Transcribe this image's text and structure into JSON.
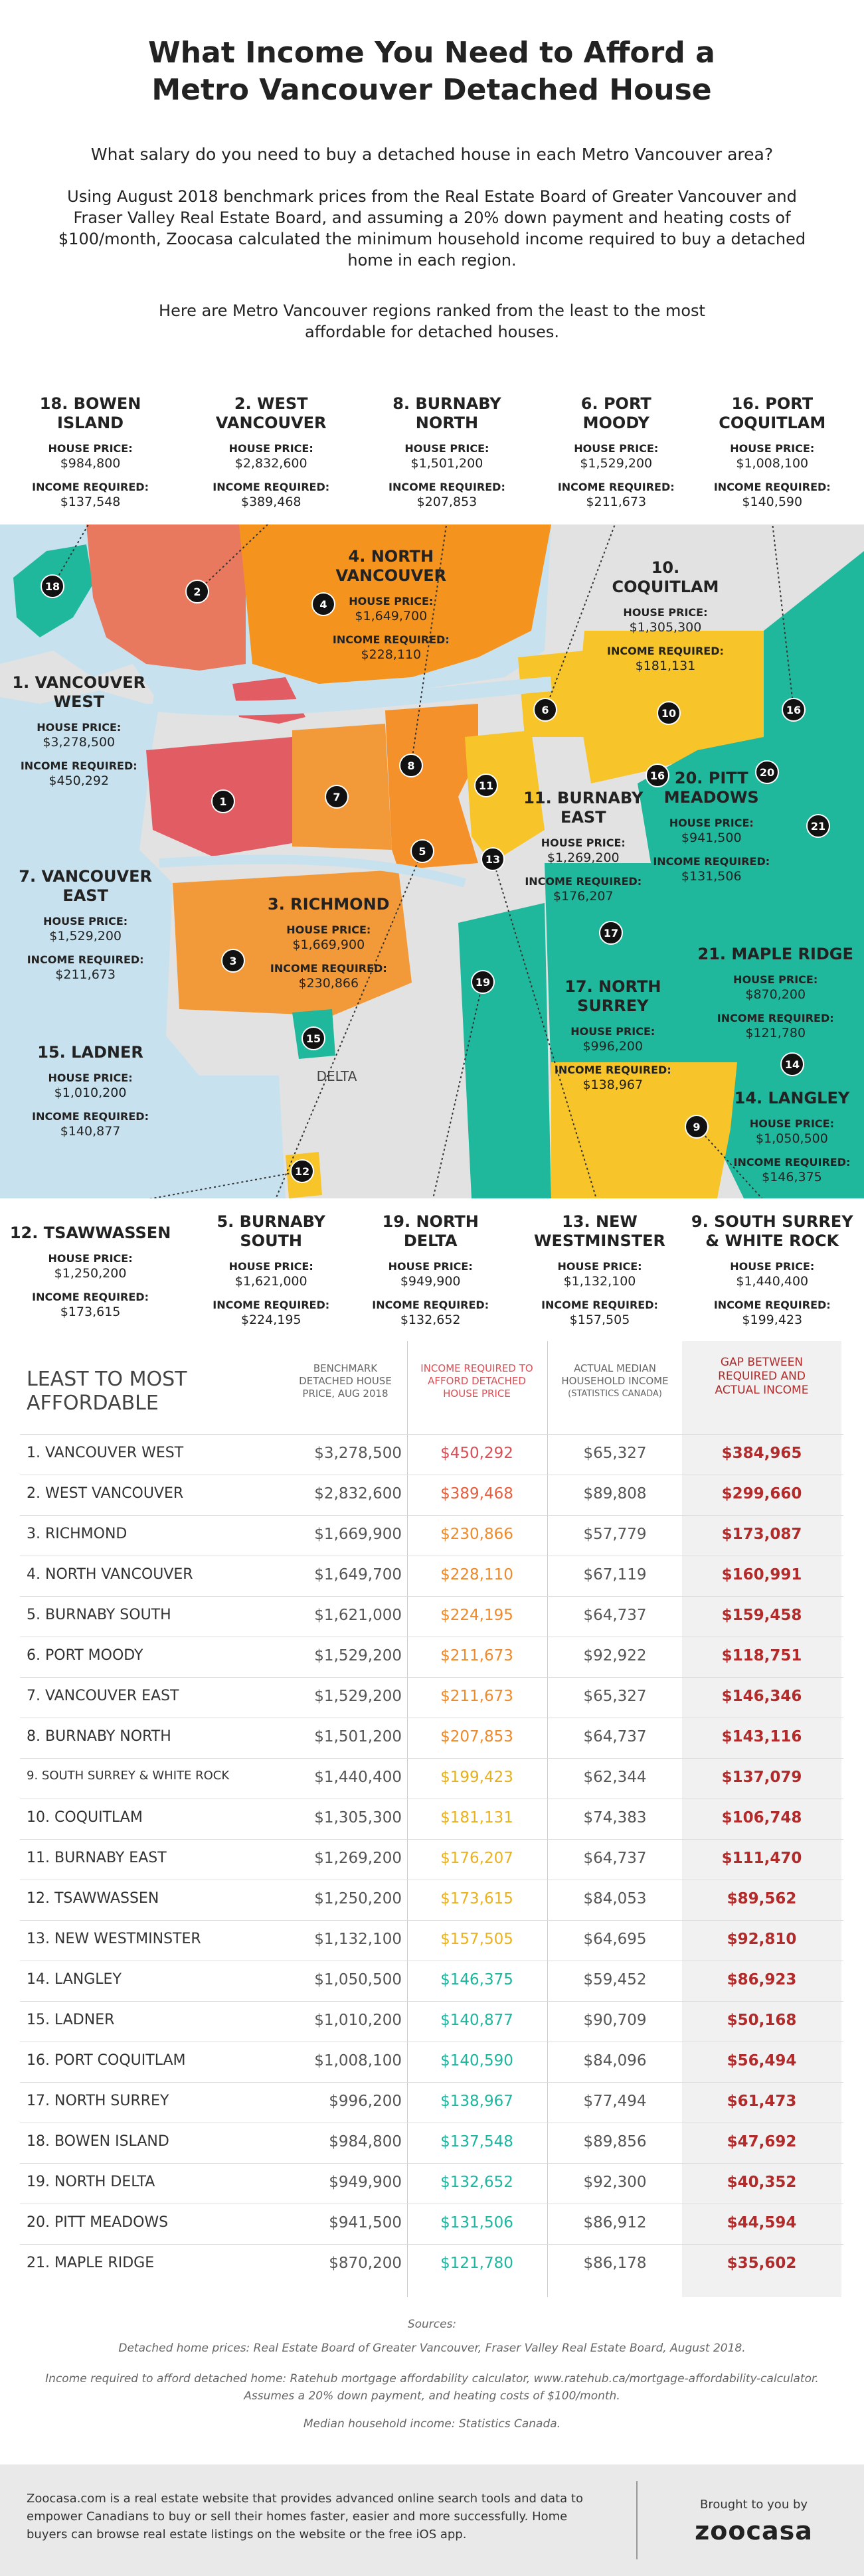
{
  "header": {
    "title": "What Income You Need to Afford a Metro Vancouver Detached House",
    "question": "What salary do you need to buy a detached house in each Metro Vancouver area?",
    "paragraph": "Using August 2018 benchmark prices from the Real Estate Board of Greater Vancouver and Fraser Valley Real Estate Board, and assuming a 20% down payment and heating costs of $100/month, Zoocasa calculated the minimum household income required to buy a detached home in each region.",
    "ranking_note": "Here are Metro Vancouver regions ranked from the least to the most affordable for detached houses."
  },
  "map": {
    "house_price_label": "HOUSE PRICE:",
    "income_label": "INCOME REQUIRED:",
    "delta_label": "DELTA",
    "regions": [
      {
        "marker": "1",
        "title_lines": [
          "1. VANCOUVER",
          "WEST"
        ],
        "house_price": "$3,278,500",
        "income_required": "$450,292"
      },
      {
        "marker": "2",
        "title_lines": [
          "2. WEST",
          "VANCOUVER"
        ],
        "house_price": "$2,832,600",
        "income_required": "$389,468"
      },
      {
        "marker": "3",
        "title_lines": [
          "3. RICHMOND"
        ],
        "house_price": "$1,669,900",
        "income_required": "$230,866"
      },
      {
        "marker": "4",
        "title_lines": [
          "4. NORTH",
          "VANCOUVER"
        ],
        "house_price": "$1,649,700",
        "income_required": "$228,110"
      },
      {
        "marker": "5",
        "title_lines": [
          "5. BURNABY",
          "SOUTH"
        ],
        "house_price": "$1,621,000",
        "income_required": "$224,195"
      },
      {
        "marker": "6",
        "title_lines": [
          "6. PORT",
          "MOODY"
        ],
        "house_price": "$1,529,200",
        "income_required": "$211,673"
      },
      {
        "marker": "7",
        "title_lines": [
          "7. VANCOUVER",
          "EAST"
        ],
        "house_price": "$1,529,200",
        "income_required": "$211,673"
      },
      {
        "marker": "8",
        "title_lines": [
          "8. BURNABY",
          "NORTH"
        ],
        "house_price": "$1,501,200",
        "income_required": "$207,853"
      },
      {
        "marker": "9",
        "title_lines": [
          "9. SOUTH SURREY",
          "& WHITE ROCK"
        ],
        "house_price": "$1,440,400",
        "income_required": "$199,423"
      },
      {
        "marker": "10",
        "title_lines": [
          "10.",
          "COQUITLAM"
        ],
        "house_price": "$1,305,300",
        "income_required": "$181,131"
      },
      {
        "marker": "11",
        "title_lines": [
          "11. BURNABY",
          "EAST"
        ],
        "house_price": "$1,269,200",
        "income_required": "$176,207"
      },
      {
        "marker": "12",
        "title_lines": [
          "12. TSAWWASSEN"
        ],
        "house_price": "$1,250,200",
        "income_required": "$173,615"
      },
      {
        "marker": "13",
        "title_lines": [
          "13. NEW",
          "WESTMINSTER"
        ],
        "house_price": "$1,132,100",
        "income_required": "$157,505"
      },
      {
        "marker": "14",
        "title_lines": [
          "14. LANGLEY"
        ],
        "house_price": "$1,050,500",
        "income_required": "$146,375"
      },
      {
        "marker": "15",
        "title_lines": [
          "15. LADNER"
        ],
        "house_price": "$1,010,200",
        "income_required": "$140,877"
      },
      {
        "marker": "16",
        "title_lines": [
          "16. PORT",
          "COQUITLAM"
        ],
        "house_price": "$1,008,100",
        "income_required": "$140,590"
      },
      {
        "marker": "17",
        "title_lines": [
          "17. NORTH",
          "SURREY"
        ],
        "house_price": "$996,200",
        "income_required": "$138,967"
      },
      {
        "marker": "18",
        "title_lines": [
          "18. BOWEN",
          "ISLAND"
        ],
        "house_price": "$984,800",
        "income_required": "$137,548"
      },
      {
        "marker": "19",
        "title_lines": [
          "19. NORTH",
          "DELTA"
        ],
        "house_price": "$949,900",
        "income_required": "$132,652"
      },
      {
        "marker": "20",
        "title_lines": [
          "20. PITT",
          "MEADOWS"
        ],
        "house_price": "$941,500",
        "income_required": "$131,506"
      },
      {
        "marker": "21",
        "title_lines": [
          "21. MAPLE RIDGE"
        ],
        "house_price": "$870,200",
        "income_required": "$121,780"
      }
    ]
  },
  "table": {
    "title": "LEAST TO MOST AFFORDABLE",
    "columns": [
      "BENCHMARK DETACHED HOUSE PRICE, AUG 2018",
      "INCOME REQUIRED TO AFFORD DETACHED HOUSE PRICE",
      "ACTUAL MEDIAN HOUSEHOLD INCOME",
      "(STATISTICS CANADA)",
      "GAP BETWEEN REQUIRED AND ACTUAL INCOME"
    ],
    "income_colors": [
      "#d94f55",
      "#e8603e",
      "#ef8a2b",
      "#ef8a2b",
      "#ef8a2b",
      "#ef8a2b",
      "#ef8a2b",
      "#ef8a2b",
      "#e6b01c",
      "#ecb21d",
      "#ecb21d",
      "#ecb21d",
      "#ecb21d",
      "#1db7a0",
      "#1db7a0",
      "#1db7a0",
      "#1db7a0",
      "#1db7a0",
      "#1db7a0",
      "#1db7a0",
      "#1db7a0"
    ],
    "rows": [
      [
        "1. VANCOUVER WEST",
        "$3,278,500",
        "$450,292",
        "$65,327",
        "$384,965"
      ],
      [
        "2. WEST VANCOUVER",
        "$2,832,600",
        "$389,468",
        "$89,808",
        "$299,660"
      ],
      [
        "3. RICHMOND",
        "$1,669,900",
        "$230,866",
        "$57,779",
        "$173,087"
      ],
      [
        "4. NORTH VANCOUVER",
        "$1,649,700",
        "$228,110",
        "$67,119",
        "$160,991"
      ],
      [
        "5. BURNABY SOUTH",
        "$1,621,000",
        "$224,195",
        "$64,737",
        "$159,458"
      ],
      [
        "6. PORT MOODY",
        "$1,529,200",
        "$211,673",
        "$92,922",
        "$118,751"
      ],
      [
        "7. VANCOUVER EAST",
        "$1,529,200",
        "$211,673",
        "$65,327",
        "$146,346"
      ],
      [
        "8. BURNABY NORTH",
        "$1,501,200",
        "$207,853",
        "$64,737",
        "$143,116"
      ],
      [
        "9. SOUTH SURREY & WHITE ROCK",
        "$1,440,400",
        "$199,423",
        "$62,344",
        "$137,079"
      ],
      [
        "10. COQUITLAM",
        "$1,305,300",
        "$181,131",
        "$74,383",
        "$106,748"
      ],
      [
        "11. BURNABY EAST",
        "$1,269,200",
        "$176,207",
        "$64,737",
        "$111,470"
      ],
      [
        "12. TSAWWASSEN",
        "$1,250,200",
        "$173,615",
        "$84,053",
        "$89,562"
      ],
      [
        "13. NEW WESTMINSTER",
        "$1,132,100",
        "$157,505",
        "$64,695",
        "$92,810"
      ],
      [
        "14. LANGLEY",
        "$1,050,500",
        "$146,375",
        "$59,452",
        "$86,923"
      ],
      [
        "15. LADNER",
        "$1,010,200",
        "$140,877",
        "$90,709",
        "$50,168"
      ],
      [
        "16. PORT COQUITLAM",
        "$1,008,100",
        "$140,590",
        "$84,096",
        "$56,494"
      ],
      [
        "17. NORTH SURREY",
        "$996,200",
        "$138,967",
        "$77,494",
        "$61,473"
      ],
      [
        "18. BOWEN ISLAND",
        "$984,800",
        "$137,548",
        "$89,856",
        "$47,692"
      ],
      [
        "19. NORTH DELTA",
        "$949,900",
        "$132,652",
        "$92,300",
        "$40,352"
      ],
      [
        "20. PITT MEADOWS",
        "$941,500",
        "$131,506",
        "$86,912",
        "$44,594"
      ],
      [
        "21. MAPLE RIDGE",
        "$870,200",
        "$121,780",
        "$86,178",
        "$35,602"
      ]
    ]
  },
  "sources": {
    "heading": "Sources:",
    "lines": [
      "Detached home prices: Real Estate Board of Greater Vancouver, Fraser Valley Real Estate Board, August 2018.",
      "Income required to afford detached home: Ratehub mortgage affordability calculator, www.ratehub.ca/mortgage-affordability-calculator.",
      "Assumes a 20% down payment, and heating costs of $100/month.",
      "Median household income: Statistics Canada."
    ]
  },
  "footer": {
    "about": "Zoocasa.com is a real estate website that provides advanced online search tools and data to empower Canadians to buy or sell their homes faster, easier and more successfully. Home buyers can browse real estate listings on the website or the free iOS app.",
    "brought_by": "Brought to you by",
    "logo": "zoocasa"
  }
}
